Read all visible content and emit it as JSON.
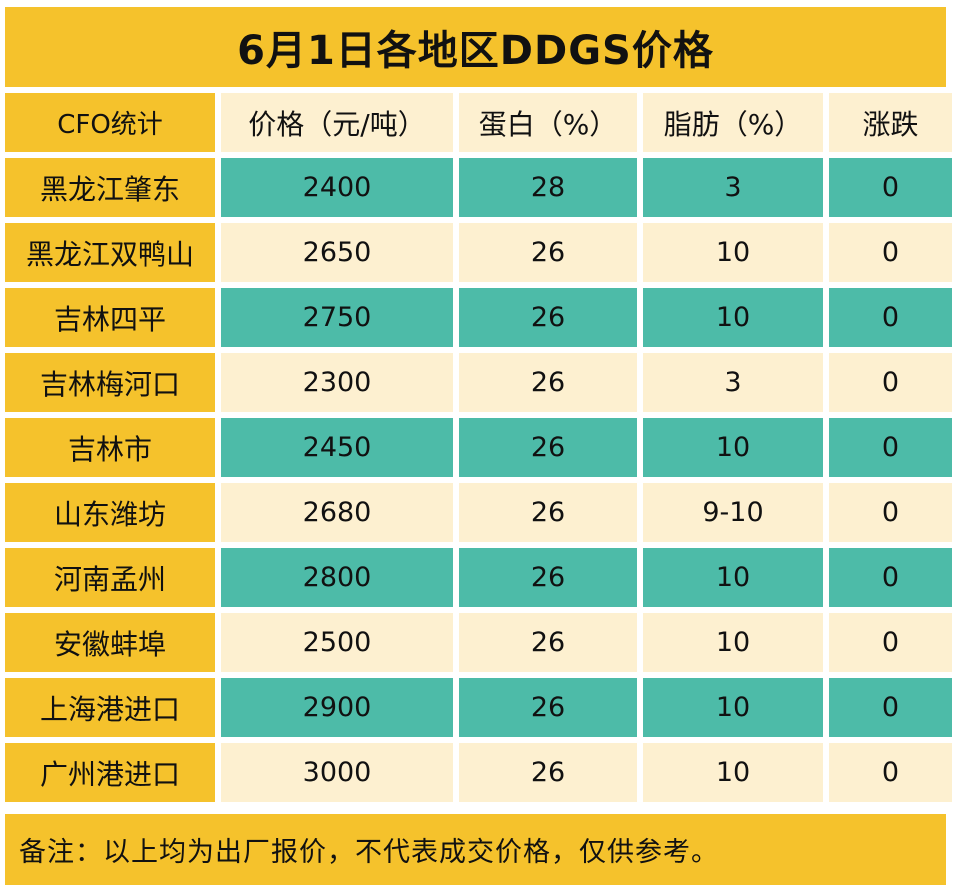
{
  "title": "6月1日各地区DDGS价格",
  "columns": [
    "CFO统计",
    "价格（元/吨）",
    "蛋白（%）",
    "脂肪（%）",
    "涨跌"
  ],
  "rows": [
    {
      "region": "黑龙江肇东",
      "price": "2400",
      "protein": "28",
      "fat": "3",
      "change": "0"
    },
    {
      "region": "黑龙江双鸭山",
      "price": "2650",
      "protein": "26",
      "fat": "10",
      "change": "0"
    },
    {
      "region": "吉林四平",
      "price": "2750",
      "protein": "26",
      "fat": "10",
      "change": "0"
    },
    {
      "region": "吉林梅河口",
      "price": "2300",
      "protein": "26",
      "fat": "3",
      "change": "0"
    },
    {
      "region": "吉林市",
      "price": "2450",
      "protein": "26",
      "fat": "10",
      "change": "0"
    },
    {
      "region": "山东潍坊",
      "price": "2680",
      "protein": "26",
      "fat": "9-10",
      "change": "0"
    },
    {
      "region": "河南孟州",
      "price": "2800",
      "protein": "26",
      "fat": "10",
      "change": "0"
    },
    {
      "region": "安徽蚌埠",
      "price": "2500",
      "protein": "26",
      "fat": "10",
      "change": "0"
    },
    {
      "region": "上海港进口",
      "price": "2900",
      "protein": "26",
      "fat": "10",
      "change": "0"
    },
    {
      "region": "广州港进口",
      "price": "3000",
      "protein": "26",
      "fat": "10",
      "change": "0"
    }
  ],
  "note": "备注：以上均为出厂报价，不代表成交价格，仅供参考。",
  "colors": {
    "yellow": "#F5C22C",
    "teal": "#4DBBA8",
    "cream": "#FDF0D0"
  }
}
